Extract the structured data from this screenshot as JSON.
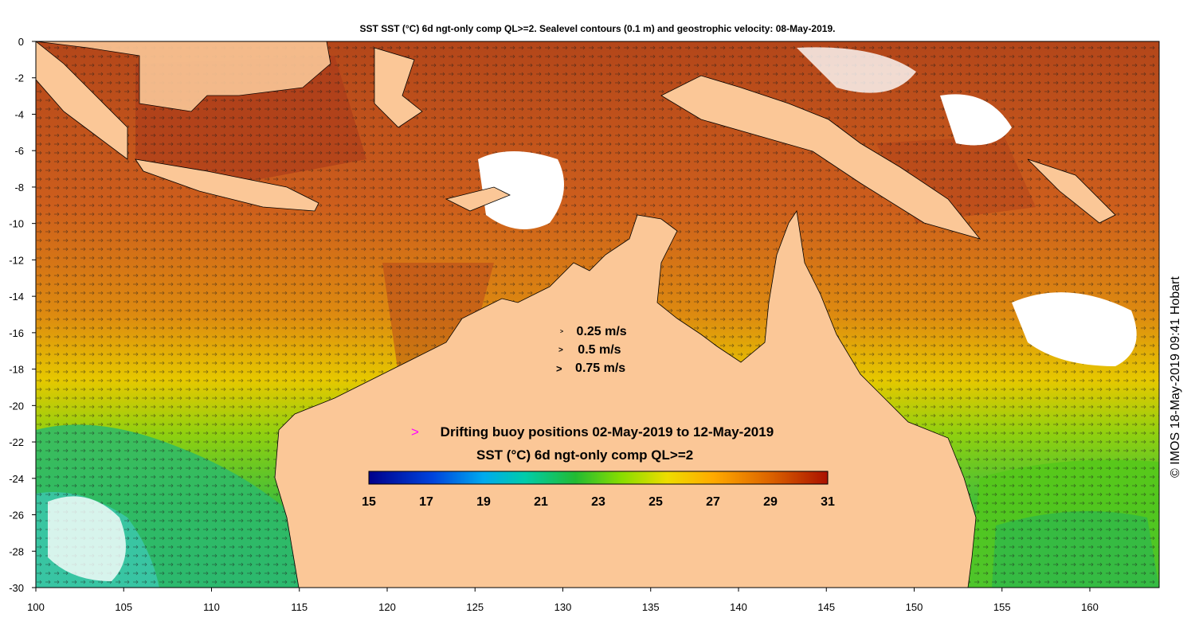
{
  "title": "SST SST (°C) 6d ngt-only comp QL>=2. Sealevel contours (0.1 m) and geostrophic velocity: 08-May-2019.",
  "credit": "© IMOS 18-May-2019 09:41 Hobart",
  "x_ticks": [
    "100",
    "105",
    "110",
    "115",
    "120",
    "125",
    "130",
    "135",
    "140",
    "145",
    "150",
    "155",
    "160"
  ],
  "y_ticks": [
    "0",
    "-2",
    "-4",
    "-6",
    "-8",
    "-10",
    "-12",
    "-14",
    "-16",
    "-18",
    "-20",
    "-22",
    "-24",
    "-26",
    "-28",
    "-30"
  ],
  "velocity_legend": [
    {
      "label": "0.25 m/s",
      "symbol": ">"
    },
    {
      "label": "0.5 m/s",
      "symbol": ">"
    },
    {
      "label": "0.75 m/s",
      "symbol": ">"
    }
  ],
  "buoy_legend": {
    "symbol": ">",
    "label": "Drifting buoy positions 02-May-2019 to 12-May-2019",
    "color": "#ff00ff"
  },
  "colorbar": {
    "title": "SST (°C) 6d ngt-only comp QL>=2",
    "tick_labels": [
      "15",
      "17",
      "19",
      "21",
      "23",
      "25",
      "27",
      "29",
      "31"
    ],
    "min": 15,
    "max": 31,
    "colors": [
      "#00008b",
      "#0033cc",
      "#0077ee",
      "#00bbee",
      "#00ccaa",
      "#11bb44",
      "#55cc00",
      "#ccdd00",
      "#ffcc00",
      "#ee8800",
      "#cc5500",
      "#aa1100"
    ]
  },
  "colors": {
    "land": "#fbc797",
    "warm_sea": "#d9701e",
    "hot_sea": "#b8441a",
    "missing": "#ffffff"
  }
}
